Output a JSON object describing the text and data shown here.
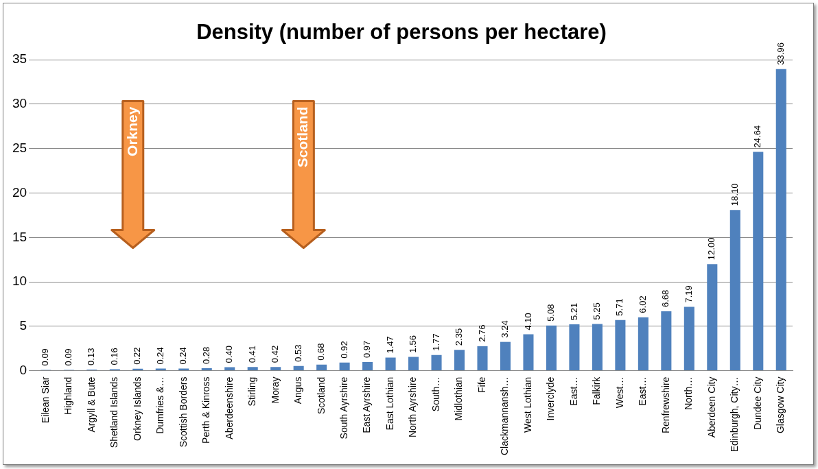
{
  "chart_data": {
    "type": "bar",
    "title": "Density (number of persons per hectare)",
    "categories": [
      "Eilean Siar",
      "Highland",
      "Argyll & Bute",
      "Shetland Islands",
      "Orkney Islands",
      "Dumfries &…",
      "Scottish Borders",
      "Perth & Kinross",
      "Aberdeenshire",
      "Stirling",
      "Moray",
      "Angus",
      "Scotland",
      "South Ayrshire",
      "East Ayrshire",
      "East Lothian",
      "North Ayrshire",
      "South…",
      "Midlothian",
      "Fife",
      "Clackmannansh…",
      "West Lothian",
      "Inverclyde",
      "East…",
      "Falkirk",
      "West…",
      "East…",
      "Renfrewshire",
      "North…",
      "Aberdeen City",
      "Edinburgh, City…",
      "Dundee City",
      "Glasgow City"
    ],
    "values": [
      0.09,
      0.09,
      0.13,
      0.16,
      0.22,
      0.24,
      0.24,
      0.28,
      0.4,
      0.41,
      0.42,
      0.53,
      0.68,
      0.92,
      0.97,
      1.47,
      1.56,
      1.77,
      2.35,
      2.76,
      3.24,
      4.1,
      5.08,
      5.21,
      5.25,
      5.71,
      6.02,
      6.68,
      7.19,
      12.0,
      18.1,
      24.64,
      33.96
    ],
    "value_labels": [
      "0.09",
      "0.09",
      "0.13",
      "0.16",
      "0.22",
      "0.24",
      "0.24",
      "0.28",
      "0.40",
      "0.41",
      "0.42",
      "0.53",
      "0.68",
      "0.92",
      "0.97",
      "1.47",
      "1.56",
      "1.77",
      "2.35",
      "2.76",
      "3.24",
      "4.10",
      "5.08",
      "5.21",
      "5.25",
      "5.71",
      "6.02",
      "6.68",
      "7.19",
      "12.00",
      "18.10",
      "24.64",
      "33.96"
    ],
    "color": "#4f81bd",
    "ylim": [
      0,
      35
    ],
    "yticks": [
      0,
      5,
      10,
      15,
      20,
      25,
      30,
      35
    ],
    "grid": "y",
    "legend": false,
    "annotations": [
      "Orkney",
      "Scotland"
    ]
  }
}
